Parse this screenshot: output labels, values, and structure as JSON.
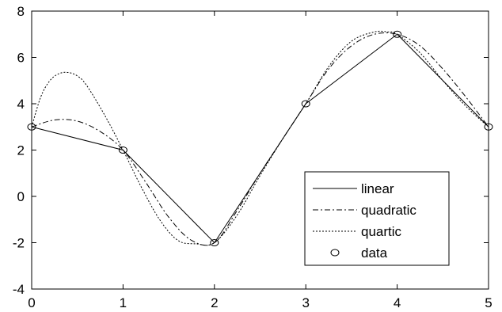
{
  "chart_data": {
    "type": "line",
    "title": "",
    "xlabel": "",
    "ylabel": "",
    "xlim": [
      0,
      5
    ],
    "ylim": [
      -4,
      8
    ],
    "xticks": [
      0,
      1,
      2,
      3,
      4,
      5
    ],
    "yticks": [
      -4,
      -2,
      0,
      2,
      4,
      6,
      8
    ],
    "grid": false,
    "legend_position": "lower-right",
    "series": [
      {
        "name": "linear",
        "style": "solid",
        "color": "#000000",
        "x": [
          0,
          1,
          2,
          3,
          4,
          5
        ],
        "y": [
          3,
          2,
          -2,
          4,
          7,
          3
        ]
      },
      {
        "name": "quadratic",
        "style": "dashdot",
        "color": "#000000",
        "x": [
          0,
          0.25,
          0.5,
          0.75,
          1,
          1.25,
          1.5,
          1.75,
          2,
          2.25,
          2.5,
          2.75,
          3,
          3.25,
          3.5,
          3.75,
          4,
          4.25,
          4.5,
          4.75,
          5
        ],
        "y": [
          3,
          3.3,
          3.25,
          2.8,
          2,
          0.6,
          -0.9,
          -1.9,
          -2,
          -0.6,
          1.0,
          2.5,
          4,
          5.5,
          6.5,
          7.0,
          7,
          6.5,
          5.5,
          4.3,
          3
        ]
      },
      {
        "name": "quartic",
        "style": "dotted",
        "color": "#000000",
        "x": [
          0,
          0.1,
          0.2,
          0.3,
          0.4,
          0.5,
          0.6,
          0.8,
          1,
          1.2,
          1.4,
          1.6,
          1.8,
          2,
          2.25,
          2.5,
          2.75,
          3,
          3.25,
          3.5,
          3.75,
          3.9,
          4,
          4.25,
          4.5,
          4.75,
          5
        ],
        "y": [
          3,
          4.3,
          5.0,
          5.3,
          5.35,
          5.2,
          4.8,
          3.5,
          2,
          0.4,
          -1.0,
          -1.9,
          -2.05,
          -2,
          -0.8,
          0.9,
          2.5,
          4,
          5.6,
          6.7,
          7.1,
          7.1,
          7,
          6.2,
          5.0,
          3.9,
          3
        ]
      },
      {
        "name": "data",
        "style": "markers",
        "color": "#000000",
        "x": [
          0,
          1,
          2,
          3,
          4,
          5
        ],
        "y": [
          3,
          2,
          -2,
          4,
          7,
          3
        ]
      }
    ]
  }
}
